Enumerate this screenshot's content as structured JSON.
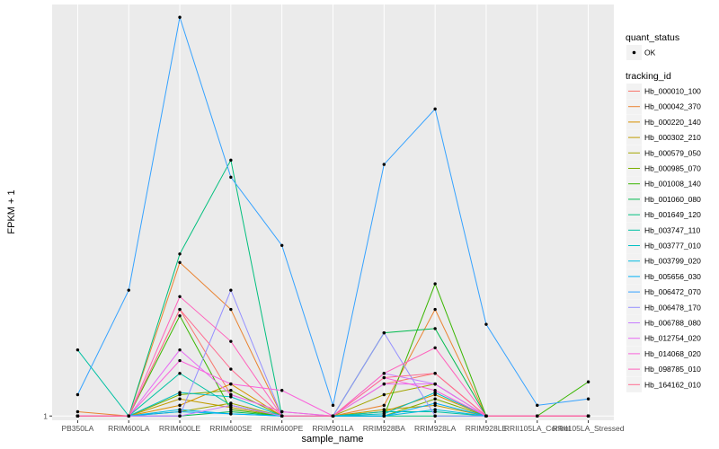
{
  "chart_data": {
    "type": "line",
    "xlabel": "sample_name",
    "ylabel": "FPKM + 1",
    "y_tick_labels": [
      "1"
    ],
    "y_baseline_value": 1,
    "categories": [
      "PB350LA",
      "RRIM600LA",
      "RRIM600LE",
      "RRIM600SE",
      "RRIM600PE",
      "RRIM901LA",
      "RRIM928BA",
      "RRIM928LA",
      "RRIM928LE",
      "RRII105LA_Control",
      "RRII105LA_Stressed"
    ],
    "ylim": [
      0.8,
      20.3
    ],
    "grid": true,
    "legend_position": "right",
    "legend_quant": {
      "title": "quant_status",
      "items": [
        "OK"
      ]
    },
    "legend_tracking": {
      "title": "tracking_id"
    },
    "series": [
      {
        "name": "Hb_000010_100",
        "color": "#F8766D",
        "values": [
          1.0,
          1.0,
          6.0,
          2.0,
          1.2,
          1.0,
          2.5,
          3.0,
          1.0,
          1.0,
          1.0
        ]
      },
      {
        "name": "Hb_000042_370",
        "color": "#EA8331",
        "values": [
          1.2,
          1.0,
          8.2,
          6.0,
          1.0,
          1.0,
          1.5,
          6.0,
          1.0,
          1.0,
          1.0
        ]
      },
      {
        "name": "Hb_000220_140",
        "color": "#D89000",
        "values": [
          1.0,
          1.0,
          1.5,
          2.5,
          1.0,
          1.0,
          1.2,
          2.0,
          1.0,
          1.0,
          1.0
        ]
      },
      {
        "name": "Hb_000302_210",
        "color": "#C09B00",
        "values": [
          1.0,
          1.0,
          1.8,
          1.4,
          1.0,
          1.0,
          1.3,
          1.5,
          1.0,
          1.0,
          1.0
        ]
      },
      {
        "name": "Hb_000579_050",
        "color": "#A3A500",
        "values": [
          1.0,
          1.0,
          1.2,
          1.6,
          1.0,
          1.0,
          2.0,
          2.5,
          1.0,
          1.0,
          1.0
        ]
      },
      {
        "name": "Hb_000985_070",
        "color": "#7CAE00",
        "values": [
          1.0,
          1.0,
          2.0,
          2.2,
          1.0,
          1.0,
          1.0,
          1.8,
          1.0,
          1.0,
          1.0
        ]
      },
      {
        "name": "Hb_001008_140",
        "color": "#39B600",
        "values": [
          1.0,
          1.0,
          5.7,
          1.3,
          1.0,
          1.0,
          1.0,
          7.2,
          1.0,
          1.0,
          2.6
        ]
      },
      {
        "name": "Hb_001060_080",
        "color": "#00BB4E",
        "values": [
          1.0,
          1.0,
          1.0,
          1.2,
          1.0,
          1.0,
          4.9,
          5.1,
          1.0,
          1.0,
          1.0
        ]
      },
      {
        "name": "Hb_001649_120",
        "color": "#00BF7D",
        "values": [
          1.0,
          1.0,
          8.6,
          13.0,
          1.0,
          1.0,
          1.0,
          1.0,
          1.0,
          1.0,
          1.0
        ]
      },
      {
        "name": "Hb_003747_110",
        "color": "#00C1A3",
        "values": [
          4.1,
          1.0,
          3.0,
          1.5,
          1.0,
          1.0,
          1.2,
          1.2,
          1.0,
          1.0,
          1.0
        ]
      },
      {
        "name": "Hb_003777_010",
        "color": "#00BFC4",
        "values": [
          1.0,
          1.0,
          2.1,
          1.9,
          1.0,
          1.0,
          1.1,
          2.1,
          1.0,
          1.0,
          1.0
        ]
      },
      {
        "name": "Hb_003799_020",
        "color": "#00BAE0",
        "values": [
          1.0,
          1.0,
          1.3,
          1.1,
          1.0,
          1.0,
          1.0,
          1.3,
          1.0,
          1.0,
          1.0
        ]
      },
      {
        "name": "Hb_005656_030",
        "color": "#00B0F6",
        "values": [
          1.0,
          1.0,
          1.2,
          1.1,
          1.0,
          1.0,
          1.0,
          1.6,
          1.0,
          1.0,
          1.0
        ]
      },
      {
        "name": "Hb_006472_070",
        "color": "#35A2FF",
        "values": [
          2.0,
          6.9,
          19.7,
          12.2,
          9.0,
          1.5,
          12.8,
          15.4,
          5.3,
          1.5,
          1.8
        ]
      },
      {
        "name": "Hb_006478_170",
        "color": "#9590FF",
        "values": [
          1.0,
          1.0,
          1.0,
          6.9,
          1.0,
          1.0,
          4.9,
          1.0,
          1.0,
          1.0,
          1.0
        ]
      },
      {
        "name": "Hb_006788_080",
        "color": "#C77CFF",
        "values": [
          1.0,
          1.0,
          1.0,
          1.5,
          1.0,
          1.0,
          3.0,
          2.5,
          1.0,
          1.0,
          1.0
        ]
      },
      {
        "name": "Hb_012754_020",
        "color": "#E76BF3",
        "values": [
          1.0,
          1.0,
          4.1,
          2.0,
          1.2,
          1.0,
          2.5,
          2.5,
          1.0,
          1.0,
          1.0
        ]
      },
      {
        "name": "Hb_014068_020",
        "color": "#FA62DB",
        "values": [
          1.0,
          1.0,
          3.6,
          2.5,
          2.2,
          1.0,
          2.8,
          2.2,
          1.0,
          1.0,
          1.0
        ]
      },
      {
        "name": "Hb_098785_010",
        "color": "#FF62BC",
        "values": [
          1.0,
          1.0,
          6.6,
          4.5,
          1.0,
          1.0,
          3.0,
          4.2,
          1.0,
          1.0,
          1.0
        ]
      },
      {
        "name": "Hb_164162_010",
        "color": "#FF6C91",
        "values": [
          1.0,
          1.0,
          6.0,
          3.2,
          1.0,
          1.0,
          2.8,
          3.0,
          1.0,
          1.0,
          1.0
        ]
      }
    ]
  }
}
